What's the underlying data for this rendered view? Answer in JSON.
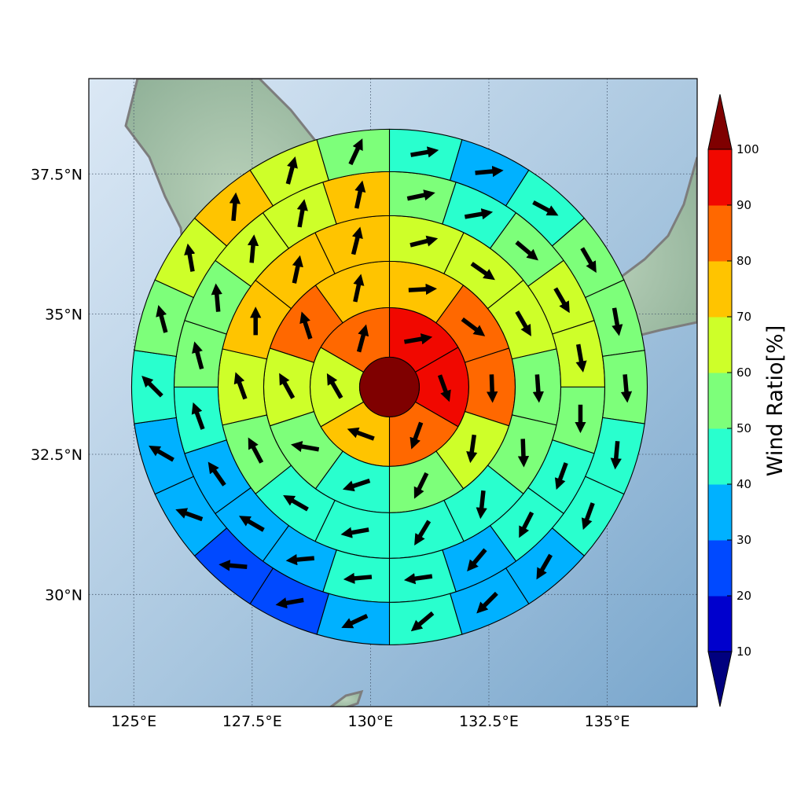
{
  "chart_data": {
    "type": "polar-sector-wind-map",
    "title": "",
    "map": {
      "lon_range": [
        124.05,
        136.9
      ],
      "lat_range": [
        28.0,
        39.2
      ],
      "x_ticks": [
        {
          "value": 125,
          "label": "125°E"
        },
        {
          "value": 127.5,
          "label": "127.5°E"
        },
        {
          "value": 130,
          "label": "130°E"
        },
        {
          "value": 132.5,
          "label": "132.5°E"
        },
        {
          "value": 135,
          "label": "135°E"
        }
      ],
      "y_ticks": [
        {
          "value": 30,
          "label": "30°N"
        },
        {
          "value": 32.5,
          "label": "32.5°N"
        },
        {
          "value": 35,
          "label": "35°N"
        },
        {
          "value": 37.5,
          "label": "37.5°N"
        }
      ],
      "grid": true,
      "center": {
        "lon": 130.4,
        "lat": 33.7
      }
    },
    "colorbar": {
      "label": "Wind Ratio[%]",
      "ticks": [
        10,
        20,
        30,
        40,
        50,
        60,
        70,
        80,
        90,
        100
      ],
      "extend": "both",
      "bins": [
        {
          "lo": 0,
          "hi": 10,
          "color": "#00007f"
        },
        {
          "lo": 10,
          "hi": 20,
          "color": "#0000cd"
        },
        {
          "lo": 20,
          "hi": 30,
          "color": "#0049ff"
        },
        {
          "lo": 30,
          "hi": 40,
          "color": "#00b1ff"
        },
        {
          "lo": 40,
          "hi": 50,
          "color": "#29ffce"
        },
        {
          "lo": 50,
          "hi": 60,
          "color": "#7dff7a"
        },
        {
          "lo": 60,
          "hi": 70,
          "color": "#ceff29"
        },
        {
          "lo": 70,
          "hi": 80,
          "color": "#ffc400"
        },
        {
          "lo": 80,
          "hi": 90,
          "color": "#ff6800"
        },
        {
          "lo": 90,
          "hi": 100,
          "color": "#f10800"
        },
        {
          "lo": 100,
          "hi": 110,
          "color": "#7f0000"
        }
      ]
    },
    "center_cell": {
      "value": 100
    },
    "rings": [
      {
        "ring": 1,
        "sector_start_deg": 0,
        "values": [
          95,
          95,
          85,
          75,
          65,
          85
        ],
        "arrow_dir_deg": [
          80,
          160,
          200,
          290,
          330,
          15
        ]
      },
      {
        "ring": 2,
        "sector_start_deg": 0,
        "values": [
          75,
          85,
          85,
          65,
          55,
          45,
          55,
          65,
          85,
          75
        ],
        "arrow_dir_deg": [
          87,
          127,
          178,
          188,
          206,
          252,
          280,
          331,
          342,
          12
        ]
      },
      {
        "ring": 3,
        "sector_start_deg": 0,
        "values": [
          65,
          65,
          65,
          55,
          55,
          45,
          45,
          45,
          45,
          55,
          65,
          75,
          75,
          75
        ],
        "arrow_dir_deg": [
          76,
          125,
          150,
          176,
          178,
          186,
          211,
          260,
          300,
          332,
          340,
          0,
          12,
          14
        ]
      },
      {
        "ring": 4,
        "sector_start_deg": 0,
        "values": [
          55,
          45,
          55,
          65,
          65,
          55,
          45,
          45,
          35,
          45,
          45,
          35,
          35,
          35,
          45,
          55,
          55,
          65,
          65,
          75
        ],
        "arrow_dir_deg": [
          78,
          80,
          130,
          150,
          170,
          180,
          200,
          207,
          220,
          262,
          265,
          265,
          300,
          325,
          340,
          345,
          355,
          5,
          10,
          12
        ]
      },
      {
        "ring": 5,
        "sector_start_deg": 0,
        "values": [
          45,
          35,
          45,
          55,
          55,
          55,
          45,
          45,
          35,
          35,
          45,
          35,
          25,
          25,
          35,
          35,
          45,
          55,
          65,
          75,
          65,
          55
        ],
        "arrow_dir_deg": [
          80,
          85,
          118,
          150,
          170,
          175,
          185,
          200,
          210,
          225,
          230,
          245,
          260,
          275,
          290,
          300,
          315,
          345,
          350,
          5,
          15,
          25
        ]
      }
    ]
  }
}
